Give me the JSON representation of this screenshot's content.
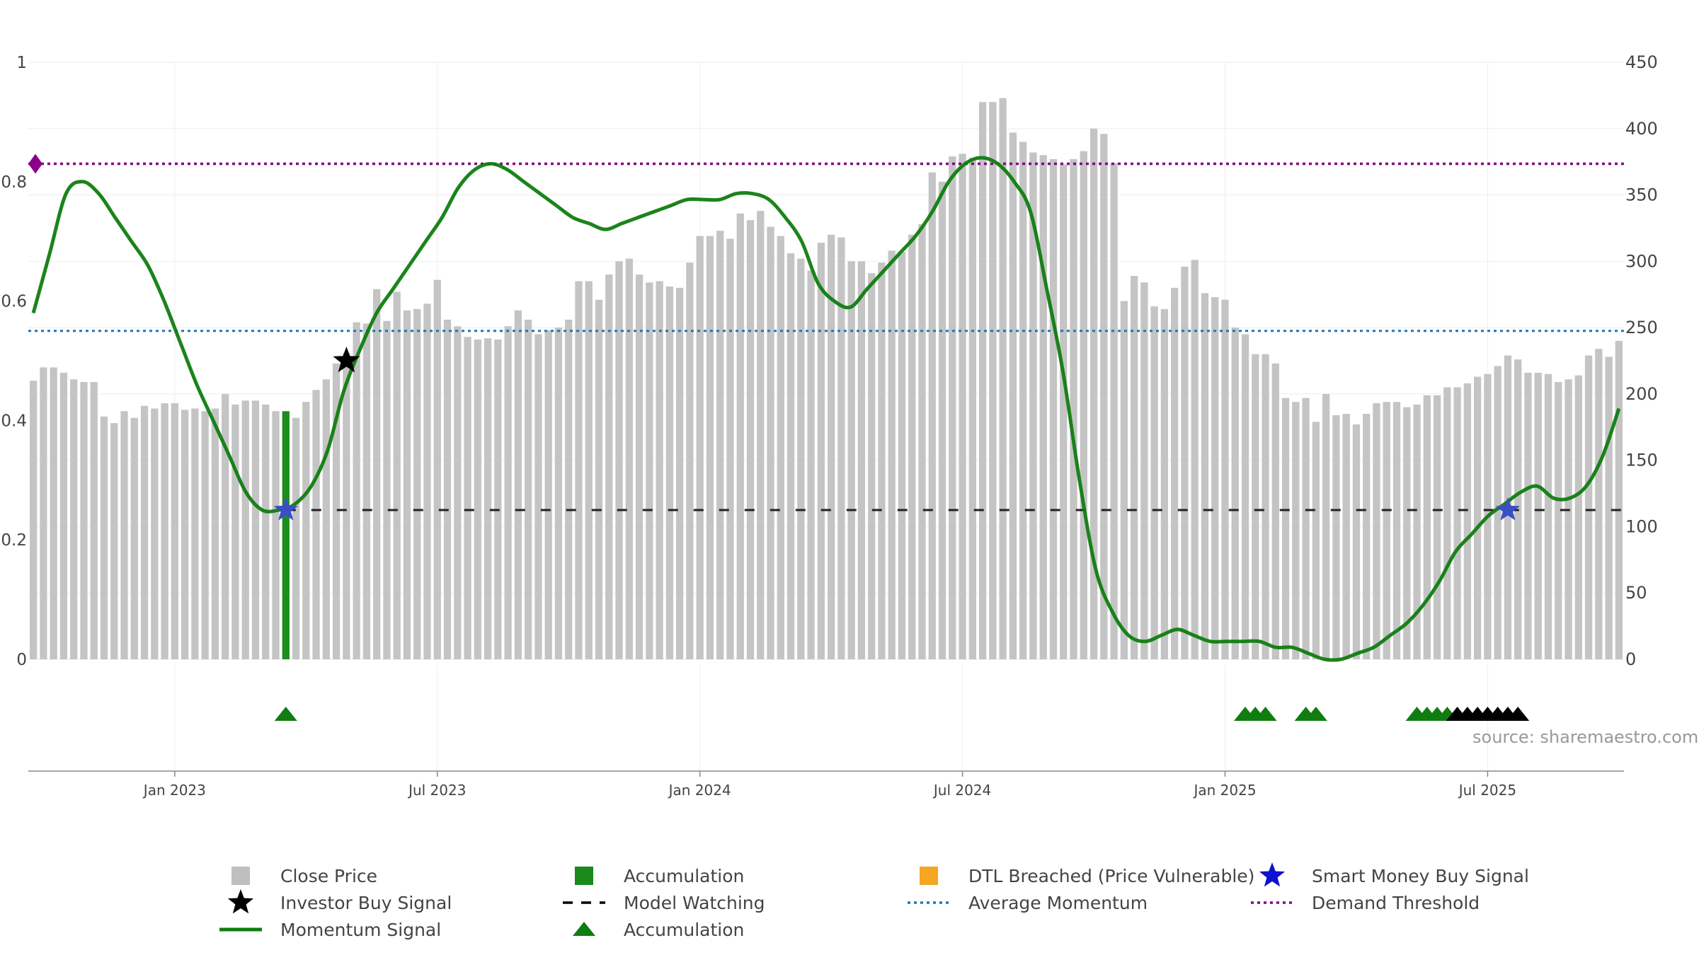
{
  "chart_data": {
    "type": "bar",
    "source_text": "source: sharemaestro.com",
    "left_axis": {
      "range": [
        0,
        1
      ],
      "ticks": [
        {
          "v": 0,
          "label": "0"
        },
        {
          "v": 0.2,
          "label": "0.2"
        },
        {
          "v": 0.4,
          "label": "0.4"
        },
        {
          "v": 0.6,
          "label": "0.6"
        },
        {
          "v": 0.8,
          "label": "0.8"
        },
        {
          "v": 1,
          "label": "1"
        }
      ]
    },
    "right_axis": {
      "range": [
        0,
        450
      ],
      "ticks": [
        {
          "v": 0,
          "label": "0"
        },
        {
          "v": 50,
          "label": "50"
        },
        {
          "v": 100,
          "label": "100"
        },
        {
          "v": 150,
          "label": "150"
        },
        {
          "v": 200,
          "label": "200"
        },
        {
          "v": 250,
          "label": "250"
        },
        {
          "v": 300,
          "label": "300"
        },
        {
          "v": 350,
          "label": "350"
        },
        {
          "v": 400,
          "label": "400"
        },
        {
          "v": 450,
          "label": "450"
        }
      ]
    },
    "x_ticks": [
      {
        "i": 14,
        "label": "Jan 2023"
      },
      {
        "i": 40,
        "label": "Jul 2023"
      },
      {
        "i": 66,
        "label": "Jan 2024"
      },
      {
        "i": 92,
        "label": "Jul 2024"
      },
      {
        "i": 118,
        "label": "Jan 2025"
      },
      {
        "i": 144,
        "label": "Jul 2025"
      }
    ],
    "close_price": [
      210,
      220,
      220,
      216,
      211,
      209,
      209,
      183,
      178,
      187,
      182,
      191,
      189,
      193,
      193,
      188,
      189,
      187,
      189,
      200,
      192,
      195,
      195,
      192,
      187,
      187,
      182,
      194,
      203,
      211,
      223,
      231,
      254,
      253,
      279,
      255,
      277,
      263,
      264,
      268,
      286,
      256,
      251,
      243,
      241,
      242,
      241,
      251,
      263,
      256,
      245,
      248,
      250,
      256,
      285,
      285,
      271,
      290,
      300,
      302,
      290,
      284,
      285,
      281,
      280,
      299,
      319,
      319,
      323,
      317,
      336,
      331,
      338,
      326,
      319,
      306,
      302,
      293,
      314,
      320,
      318,
      300,
      300,
      291,
      299,
      308,
      307,
      320,
      328,
      367,
      360,
      379,
      381,
      378,
      420,
      420,
      423,
      397,
      390,
      382,
      380,
      377,
      373,
      377,
      383,
      400,
      396,
      374,
      270,
      289,
      284,
      266,
      264,
      280,
      296,
      301,
      276,
      273,
      271,
      250,
      245,
      230,
      230,
      223,
      197,
      194,
      197,
      179,
      200,
      184,
      185,
      177,
      185,
      193,
      194,
      194,
      190,
      192,
      199,
      199,
      205,
      205,
      208,
      213,
      215,
      221,
      229,
      226,
      216,
      216,
      215,
      209,
      211,
      214,
      229,
      234,
      228,
      240
    ],
    "bar_category": [
      "close",
      "close",
      "close",
      "close",
      "close",
      "close",
      "close",
      "close",
      "close",
      "close",
      "close",
      "close",
      "close",
      "close",
      "close",
      "close",
      "close",
      "close",
      "close",
      "close",
      "close",
      "close",
      "close",
      "close",
      "close",
      "acc",
      "close",
      "close",
      "close",
      "close",
      "close",
      "close",
      "close",
      "close",
      "close",
      "close",
      "close",
      "close",
      "close",
      "close",
      "close",
      "close",
      "close",
      "close",
      "close",
      "close",
      "close",
      "close",
      "close",
      "close",
      "close",
      "close",
      "close",
      "close",
      "close",
      "close",
      "close",
      "close",
      "close",
      "close",
      "close",
      "close",
      "close",
      "close",
      "close",
      "close",
      "close",
      "close",
      "close",
      "close",
      "close",
      "close",
      "close",
      "close",
      "close",
      "close",
      "close",
      "close",
      "close",
      "close",
      "close",
      "close",
      "close",
      "close",
      "close",
      "close",
      "close",
      "close",
      "close",
      "close",
      "close",
      "close",
      "close",
      "close",
      "close",
      "close",
      "close",
      "close",
      "close",
      "close",
      "close",
      "close",
      "close",
      "close",
      "close",
      "close",
      "close",
      "close",
      "close",
      "close",
      "close",
      "close",
      "close",
      "close",
      "close",
      "close",
      "close",
      "close",
      "close",
      "close",
      "close",
      "close",
      "close",
      "close",
      "close",
      "close",
      "close",
      "close",
      "close",
      "close",
      "close",
      "close",
      "close",
      "close",
      "close",
      "close",
      "close",
      "close",
      "close",
      "close",
      "close",
      "close",
      "close",
      "close",
      "close",
      "close",
      "close",
      "close",
      "close",
      "close",
      "close",
      "close",
      "close",
      "close",
      "close",
      "close",
      "close",
      "close"
    ],
    "momentum": [
      0.58,
      0.68,
      0.78,
      0.8,
      0.78,
      0.74,
      0.7,
      0.66,
      0.6,
      0.53,
      0.46,
      0.4,
      0.34,
      0.28,
      0.25,
      0.25,
      0.26,
      0.29,
      0.35,
      0.45,
      0.52,
      0.58,
      0.62,
      0.66,
      0.7,
      0.74,
      0.79,
      0.82,
      0.83,
      0.82,
      0.8,
      0.78,
      0.76,
      0.74,
      0.73,
      0.72,
      0.73,
      0.74,
      0.75,
      0.76,
      0.77,
      0.77,
      0.77,
      0.78,
      0.78,
      0.77,
      0.74,
      0.7,
      0.63,
      0.6,
      0.59,
      0.62,
      0.65,
      0.68,
      0.71,
      0.75,
      0.8,
      0.83,
      0.84,
      0.83,
      0.8,
      0.75,
      0.62,
      0.48,
      0.3,
      0.15,
      0.08,
      0.04,
      0.03,
      0.04,
      0.05,
      0.04,
      0.03,
      0.03,
      0.03,
      0.03,
      0.02,
      0.02,
      0.01,
      0.0,
      0.0,
      0.01,
      0.02,
      0.04,
      0.06,
      0.09,
      0.13,
      0.18,
      0.21,
      0.24,
      0.26,
      0.28,
      0.29,
      0.27,
      0.27,
      0.29,
      0.34,
      0.42
    ],
    "average_momentum": 0.55,
    "model_watching": 0.25,
    "demand_threshold": 0.83,
    "investor_buy_signals": [
      {
        "i": 31,
        "v": 0.5
      }
    ],
    "smart_money_buy_signals": [
      {
        "i": 25,
        "v": 0.25
      },
      {
        "i": 146,
        "v": 0.25
      }
    ],
    "accumulation_markers": [
      25,
      120,
      121,
      122,
      126,
      127,
      137,
      138,
      139,
      140
    ],
    "investor_markers": [
      141,
      142,
      143,
      144,
      145,
      146,
      147
    ],
    "legend": [
      {
        "label": "Close Price",
        "symbol": "square",
        "color": "#bfbfbf"
      },
      {
        "label": "Accumulation",
        "symbol": "square",
        "color": "#1a8a1a"
      },
      {
        "label": "DTL Breached (Price Vulnerable)",
        "symbol": "square",
        "color": "#f5a623"
      },
      {
        "label": "Smart Money Buy Signal",
        "symbol": "star",
        "color": "#1010d0"
      },
      {
        "label": "Investor Buy Signal",
        "symbol": "star",
        "color": "#000000"
      },
      {
        "label": "Model Watching",
        "symbol": "dash",
        "color": "#000000"
      },
      {
        "label": "Average Momentum",
        "symbol": "dot",
        "color": "#1f77b4"
      },
      {
        "label": "Demand Threshold",
        "symbol": "dot",
        "color": "#800080"
      },
      {
        "label": "Momentum Signal",
        "symbol": "line",
        "color": "#0f7d0f"
      },
      {
        "label": "Accumulation",
        "symbol": "triangle",
        "color": "#0f7d0f"
      }
    ],
    "colors": {
      "close": "#c4c4c4",
      "accumulation": "#1e8c1e",
      "dtl": "#fbcf7e",
      "momentum": "#0f7d0f",
      "avg_momentum": "#1f77b4",
      "demand": "#800080",
      "watching": "#222222",
      "grid": "#eeeeee"
    }
  }
}
